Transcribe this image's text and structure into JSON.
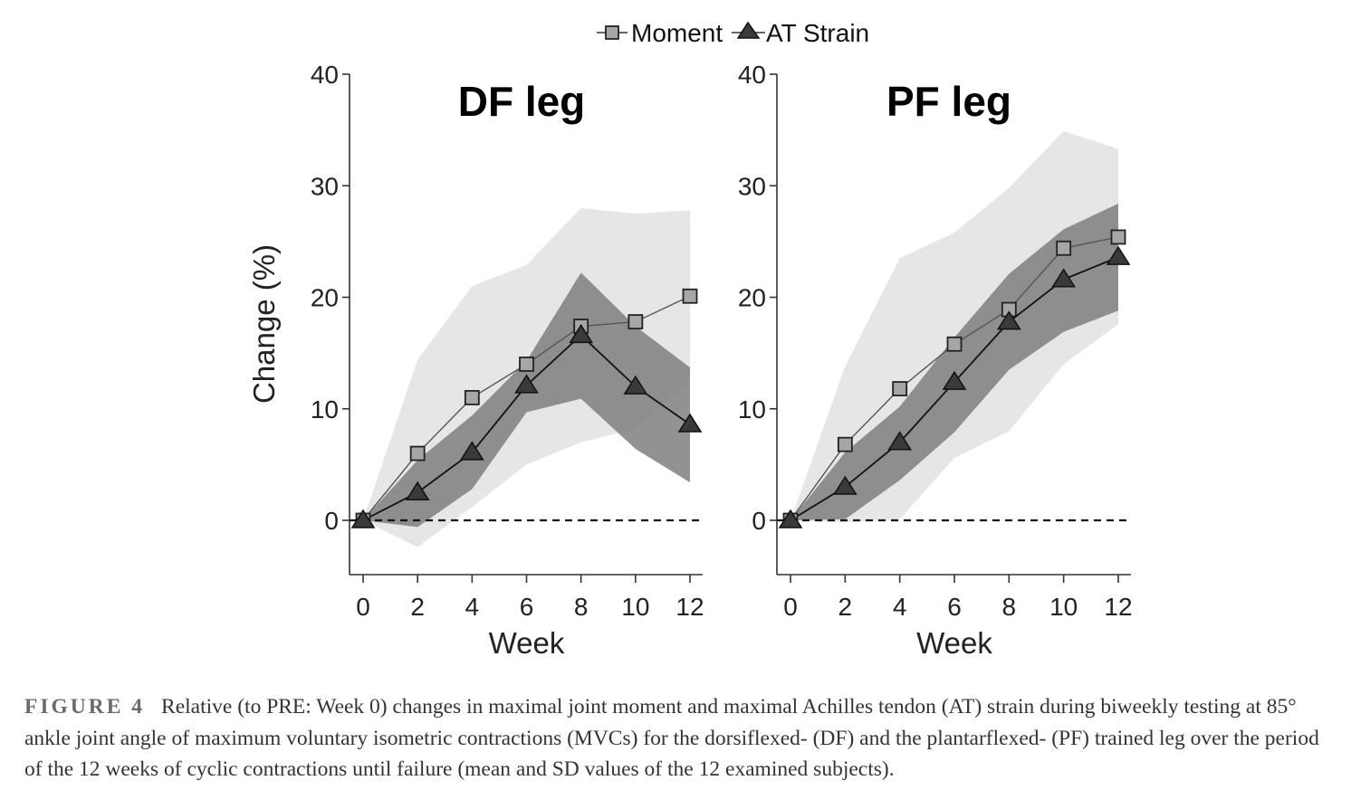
{
  "legend": {
    "items": [
      {
        "label": "Moment",
        "marker": "square",
        "fill": "#a6a6a6"
      },
      {
        "label": "AT Strain",
        "marker": "triangle",
        "fill": "#3a3a3a"
      }
    ]
  },
  "caption": {
    "label": "FIGURE 4",
    "text": "Relative (to PRE: Week 0) changes in maximal joint moment and maximal Achilles tendon (AT) strain during biweekly testing at 85° ankle joint angle of maximum voluntary isometric contractions (MVCs) for the dorsiflexed- (DF) and the plantarflexed- (PF) trained leg over the period of the 12 weeks of cyclic contractions until failure (mean and SD values of the 12 examined subjects)."
  },
  "colors": {
    "moment_band": "#e6e6e6",
    "strain_band": "#7a7a7a",
    "moment_marker": "#a6a6a6",
    "strain_marker": "#3a3a3a"
  },
  "chart_data": [
    {
      "type": "line",
      "title": "DF leg",
      "xlabel": "Week",
      "ylabel": "Change (%)",
      "x": [
        0,
        2,
        4,
        6,
        8,
        10,
        12
      ],
      "xticks": [
        "0",
        "2",
        "4",
        "6",
        "8",
        "10",
        "12"
      ],
      "yticks": [
        "0",
        "10",
        "20",
        "30",
        "40"
      ],
      "ylim": [
        -5,
        40
      ],
      "xlim": [
        -0.5,
        12.5
      ],
      "reference_line": {
        "y": 0,
        "style": "dashed"
      },
      "grid": false,
      "legend_position": "top-center",
      "series": [
        {
          "name": "Moment",
          "marker": "square",
          "values": [
            0,
            6.0,
            11.0,
            14.0,
            17.4,
            17.8,
            20.1
          ],
          "sd_lower": [
            0,
            -2.4,
            1.2,
            5.0,
            7.0,
            8.2,
            12.6
          ],
          "sd_upper": [
            0,
            14.4,
            21.0,
            22.9,
            28.0,
            27.5,
            27.8
          ]
        },
        {
          "name": "AT Strain",
          "marker": "triangle",
          "values": [
            0,
            2.5,
            6.1,
            12.1,
            16.6,
            12.0,
            8.6
          ],
          "sd_lower": [
            0,
            -0.6,
            2.8,
            9.7,
            10.9,
            6.4,
            3.4
          ],
          "sd_upper": [
            0,
            5.4,
            9.4,
            14.3,
            22.2,
            17.4,
            13.7
          ]
        }
      ]
    },
    {
      "type": "line",
      "title": "PF leg",
      "xlabel": "Week",
      "ylabel": "",
      "x": [
        0,
        2,
        4,
        6,
        8,
        10,
        12
      ],
      "xticks": [
        "0",
        "2",
        "4",
        "6",
        "8",
        "10",
        "12"
      ],
      "yticks": [
        "0",
        "10",
        "20",
        "30",
        "40"
      ],
      "ylim": [
        -5,
        40
      ],
      "xlim": [
        -0.5,
        12.5
      ],
      "reference_line": {
        "y": 0,
        "style": "dashed"
      },
      "grid": false,
      "series": [
        {
          "name": "Moment",
          "marker": "square",
          "values": [
            0,
            6.8,
            11.8,
            15.8,
            18.9,
            24.4,
            25.4
          ],
          "sd_lower": [
            0,
            -0.2,
            0.1,
            5.6,
            8.0,
            14.0,
            17.6
          ],
          "sd_upper": [
            0,
            13.8,
            23.5,
            25.8,
            29.8,
            34.9,
            33.3
          ]
        },
        {
          "name": "AT Strain",
          "marker": "triangle",
          "values": [
            0,
            3.0,
            7.0,
            12.4,
            17.8,
            21.6,
            23.6
          ],
          "sd_lower": [
            0,
            0.1,
            3.6,
            7.9,
            13.5,
            16.9,
            18.8
          ],
          "sd_upper": [
            0,
            6.1,
            10.2,
            16.4,
            22.1,
            26.1,
            28.4
          ]
        }
      ]
    }
  ]
}
